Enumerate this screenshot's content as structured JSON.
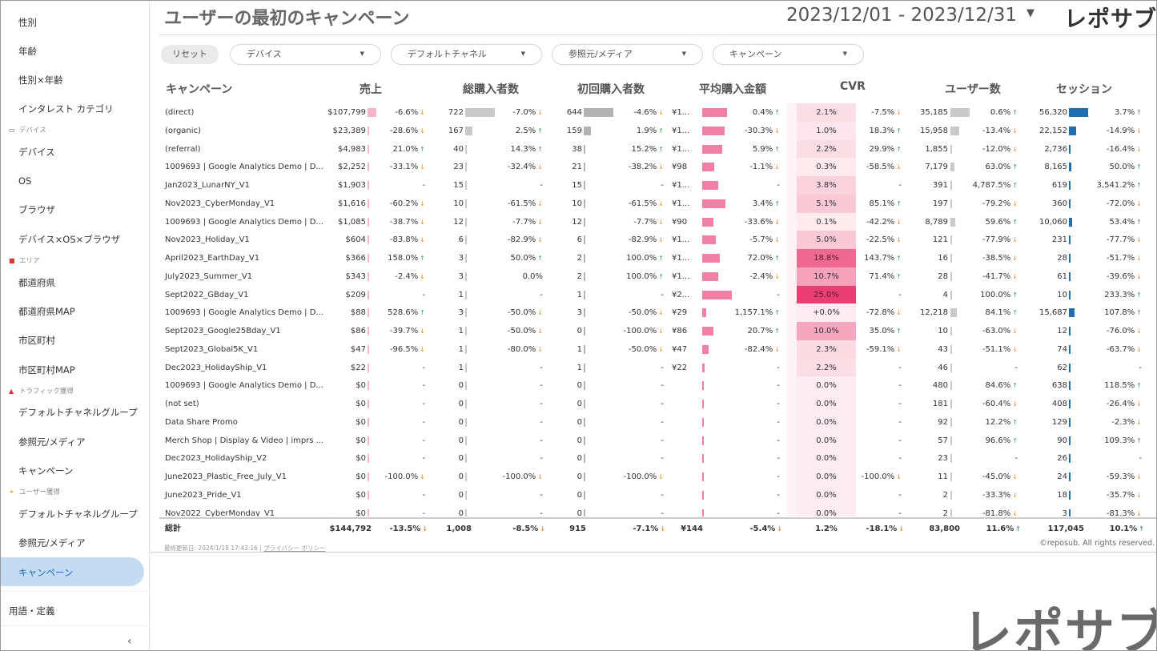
{
  "sidebar": {
    "items_top": [
      "性別",
      "年齢",
      "性別×年齢",
      "インタレスト カテゴリ"
    ],
    "section_device": "デバイス",
    "items_device": [
      "デバイス",
      "OS",
      "ブラウザ",
      "デバイス×OS×ブラウザ"
    ],
    "section_area": "エリア",
    "items_area": [
      "都道府県",
      "都道府県MAP",
      "市区町村",
      "市区町村MAP"
    ],
    "section_traffic": "トラフィック獲得",
    "items_traffic": [
      "デフォルトチャネルグループ",
      "参照元/メディア",
      "キャンペーン"
    ],
    "section_user": "ユーザー獲得",
    "items_user": [
      "デフォルトチャネルグループ",
      "参照元/メディア"
    ],
    "active": "キャンペーン",
    "glossary": "用語・定義",
    "collapse": "‹"
  },
  "header": {
    "title": "ユーザーの最初のキャンペーン",
    "date_range": "2023/12/01 - 2023/12/31",
    "logo": "レポサブ"
  },
  "filters": {
    "reset": "リセット",
    "items": [
      "デバイス",
      "デフォルトチャネル",
      "参照元/メディア",
      "キャンペーン"
    ]
  },
  "colors": {
    "accent": "#1a6fc0",
    "sales_bar": "#f4b6c8",
    "pink_bar": "#ef7fa4",
    "gray_bar": "#c9c9c9",
    "blue_bar": "#1f6fb2",
    "up": "#3aa55d",
    "down": "#e89327",
    "cvr_base": "#e83e73"
  },
  "table": {
    "headers": [
      "キャンペーン",
      "売上",
      "総購入者数",
      "初回購入者数",
      "平均購入金額",
      "CVR",
      "ユーザー数",
      "セッション"
    ],
    "rows": [
      {
        "name": "(direct)",
        "sales": "$107,799",
        "sales_ch": "-6.6%",
        "sales_d": "dn",
        "buy": "722",
        "buy_ch": "-7.0%",
        "buy_d": "dn",
        "first": "644",
        "first_ch": "-4.6%",
        "first_d": "dn",
        "avg": "¥1...",
        "avg_ch": "0.4%",
        "avg_d": "up",
        "cvr": "2.1%",
        "cvr_ch": "-7.5%",
        "cvr_d": "dn",
        "users": "35,185",
        "users_ch": "0.6%",
        "users_d": "up",
        "sess": "56,320",
        "sess_ch": "3.7%",
        "sess_d": "up"
      },
      {
        "name": "(organic)",
        "sales": "$23,389",
        "sales_ch": "-28.6%",
        "sales_d": "dn",
        "buy": "167",
        "buy_ch": "2.5%",
        "buy_d": "up",
        "first": "159",
        "first_ch": "1.9%",
        "first_d": "up",
        "avg": "¥1...",
        "avg_ch": "-30.3%",
        "avg_d": "dn",
        "cvr": "1.0%",
        "cvr_ch": "18.3%",
        "cvr_d": "up",
        "users": "15,958",
        "users_ch": "-13.4%",
        "users_d": "dn",
        "sess": "22,152",
        "sess_ch": "-14.9%",
        "sess_d": "dn"
      },
      {
        "name": "(referral)",
        "sales": "$4,983",
        "sales_ch": "21.0%",
        "sales_d": "up",
        "buy": "40",
        "buy_ch": "14.3%",
        "buy_d": "up",
        "first": "38",
        "first_ch": "15.2%",
        "first_d": "up",
        "avg": "¥1...",
        "avg_ch": "5.9%",
        "avg_d": "up",
        "cvr": "2.2%",
        "cvr_ch": "29.9%",
        "cvr_d": "up",
        "users": "1,855",
        "users_ch": "-12.0%",
        "users_d": "dn",
        "sess": "2,736",
        "sess_ch": "-16.4%",
        "sess_d": "dn"
      },
      {
        "name": "1009693 | Google Analytics Demo | D...",
        "sales": "$2,252",
        "sales_ch": "-33.1%",
        "sales_d": "dn",
        "buy": "23",
        "buy_ch": "-32.4%",
        "buy_d": "dn",
        "first": "21",
        "first_ch": "-38.2%",
        "first_d": "dn",
        "avg": "¥98",
        "avg_ch": "-1.1%",
        "avg_d": "dn",
        "cvr": "0.3%",
        "cvr_ch": "-58.5%",
        "cvr_d": "dn",
        "users": "7,179",
        "users_ch": "63.0%",
        "users_d": "up",
        "sess": "8,165",
        "sess_ch": "50.0%",
        "sess_d": "up"
      },
      {
        "name": "Jan2023_LunarNY_V1",
        "sales": "$1,903",
        "sales_ch": "-",
        "sales_d": "",
        "buy": "15",
        "buy_ch": "-",
        "buy_d": "",
        "first": "15",
        "first_ch": "-",
        "first_d": "",
        "avg": "¥1...",
        "avg_ch": "-",
        "avg_d": "",
        "cvr": "3.8%",
        "cvr_ch": "-",
        "cvr_d": "",
        "users": "391",
        "users_ch": "4,787.5%",
        "users_d": "up",
        "sess": "619",
        "sess_ch": "3,541.2%",
        "sess_d": "up"
      },
      {
        "name": "Nov2023_CyberMonday_V1",
        "sales": "$1,616",
        "sales_ch": "-60.2%",
        "sales_d": "dn",
        "buy": "10",
        "buy_ch": "-61.5%",
        "buy_d": "dn",
        "first": "10",
        "first_ch": "-61.5%",
        "first_d": "dn",
        "avg": "¥1...",
        "avg_ch": "3.4%",
        "avg_d": "up",
        "cvr": "5.1%",
        "cvr_ch": "85.1%",
        "cvr_d": "up",
        "users": "197",
        "users_ch": "-79.2%",
        "users_d": "dn",
        "sess": "360",
        "sess_ch": "-72.0%",
        "sess_d": "dn"
      },
      {
        "name": "1009693 | Google Analytics Demo | D...",
        "sales": "$1,085",
        "sales_ch": "-38.7%",
        "sales_d": "dn",
        "buy": "12",
        "buy_ch": "-7.7%",
        "buy_d": "dn",
        "first": "12",
        "first_ch": "-7.7%",
        "first_d": "dn",
        "avg": "¥90",
        "avg_ch": "-33.6%",
        "avg_d": "dn",
        "cvr": "0.1%",
        "cvr_ch": "-42.2%",
        "cvr_d": "dn",
        "users": "8,789",
        "users_ch": "59.6%",
        "users_d": "up",
        "sess": "10,060",
        "sess_ch": "53.4%",
        "sess_d": "up"
      },
      {
        "name": "Nov2023_Holiday_V1",
        "sales": "$604",
        "sales_ch": "-83.8%",
        "sales_d": "dn",
        "buy": "6",
        "buy_ch": "-82.9%",
        "buy_d": "dn",
        "first": "6",
        "first_ch": "-82.9%",
        "first_d": "dn",
        "avg": "¥1...",
        "avg_ch": "-5.7%",
        "avg_d": "dn",
        "cvr": "5.0%",
        "cvr_ch": "-22.5%",
        "cvr_d": "dn",
        "users": "121",
        "users_ch": "-77.9%",
        "users_d": "dn",
        "sess": "231",
        "sess_ch": "-77.7%",
        "sess_d": "dn"
      },
      {
        "name": "April2023_EarthDay_V1",
        "sales": "$366",
        "sales_ch": "158.0%",
        "sales_d": "up",
        "buy": "3",
        "buy_ch": "50.0%",
        "buy_d": "up",
        "first": "2",
        "first_ch": "100.0%",
        "first_d": "up",
        "avg": "¥1...",
        "avg_ch": "72.0%",
        "avg_d": "up",
        "cvr": "18.8%",
        "cvr_ch": "143.7%",
        "cvr_d": "up",
        "users": "16",
        "users_ch": "-38.5%",
        "users_d": "dn",
        "sess": "28",
        "sess_ch": "-51.7%",
        "sess_d": "dn"
      },
      {
        "name": "July2023_Summer_V1",
        "sales": "$343",
        "sales_ch": "-2.4%",
        "sales_d": "dn",
        "buy": "3",
        "buy_ch": "0.0%",
        "buy_d": "",
        "first": "2",
        "first_ch": "100.0%",
        "first_d": "up",
        "avg": "¥1...",
        "avg_ch": "-2.4%",
        "avg_d": "dn",
        "cvr": "10.7%",
        "cvr_ch": "71.4%",
        "cvr_d": "up",
        "users": "28",
        "users_ch": "-41.7%",
        "users_d": "dn",
        "sess": "61",
        "sess_ch": "-39.6%",
        "sess_d": "dn"
      },
      {
        "name": "Sept2022_GBday_V1",
        "sales": "$209",
        "sales_ch": "-",
        "sales_d": "",
        "buy": "1",
        "buy_ch": "-",
        "buy_d": "",
        "first": "1",
        "first_ch": "-",
        "first_d": "",
        "avg": "¥2...",
        "avg_ch": "-",
        "avg_d": "",
        "cvr": "25.0%",
        "cvr_ch": "-",
        "cvr_d": "",
        "users": "4",
        "users_ch": "100.0%",
        "users_d": "up",
        "sess": "10",
        "sess_ch": "233.3%",
        "sess_d": "up"
      },
      {
        "name": "1009693 | Google Analytics Demo | D...",
        "sales": "$88",
        "sales_ch": "528.6%",
        "sales_d": "up",
        "buy": "3",
        "buy_ch": "-50.0%",
        "buy_d": "dn",
        "first": "3",
        "first_ch": "-50.0%",
        "first_d": "dn",
        "avg": "¥29",
        "avg_ch": "1,157.1%",
        "avg_d": "up",
        "cvr": "+0.0%",
        "cvr_ch": "-72.8%",
        "cvr_d": "dn",
        "users": "12,218",
        "users_ch": "84.1%",
        "users_d": "up",
        "sess": "15,687",
        "sess_ch": "107.8%",
        "sess_d": "up"
      },
      {
        "name": "Sept2023_Google25Bday_V1",
        "sales": "$86",
        "sales_ch": "-39.7%",
        "sales_d": "dn",
        "buy": "1",
        "buy_ch": "-50.0%",
        "buy_d": "dn",
        "first": "0",
        "first_ch": "-100.0%",
        "first_d": "dn",
        "avg": "¥86",
        "avg_ch": "20.7%",
        "avg_d": "up",
        "cvr": "10.0%",
        "cvr_ch": "35.0%",
        "cvr_d": "up",
        "users": "10",
        "users_ch": "-63.0%",
        "users_d": "dn",
        "sess": "12",
        "sess_ch": "-76.0%",
        "sess_d": "dn"
      },
      {
        "name": "Sept2023_Global5K_V1",
        "sales": "$47",
        "sales_ch": "-96.5%",
        "sales_d": "dn",
        "buy": "1",
        "buy_ch": "-80.0%",
        "buy_d": "dn",
        "first": "1",
        "first_ch": "-50.0%",
        "first_d": "dn",
        "avg": "¥47",
        "avg_ch": "-82.4%",
        "avg_d": "dn",
        "cvr": "2.3%",
        "cvr_ch": "-59.1%",
        "cvr_d": "dn",
        "users": "43",
        "users_ch": "-51.1%",
        "users_d": "dn",
        "sess": "74",
        "sess_ch": "-63.7%",
        "sess_d": "dn"
      },
      {
        "name": "Dec2023_HolidayShip_V1",
        "sales": "$22",
        "sales_ch": "-",
        "sales_d": "",
        "buy": "1",
        "buy_ch": "-",
        "buy_d": "",
        "first": "1",
        "first_ch": "-",
        "first_d": "",
        "avg": "¥22",
        "avg_ch": "-",
        "avg_d": "",
        "cvr": "2.2%",
        "cvr_ch": "-",
        "cvr_d": "",
        "users": "46",
        "users_ch": "-",
        "users_d": "",
        "sess": "62",
        "sess_ch": "-",
        "sess_d": ""
      },
      {
        "name": "1009693 | Google Analytics Demo | D...",
        "sales": "$0",
        "sales_ch": "-",
        "sales_d": "",
        "buy": "0",
        "buy_ch": "-",
        "buy_d": "",
        "first": "0",
        "first_ch": "-",
        "first_d": "",
        "avg": "",
        "avg_ch": "-",
        "avg_d": "",
        "cvr": "0.0%",
        "cvr_ch": "-",
        "cvr_d": "",
        "users": "480",
        "users_ch": "84.6%",
        "users_d": "up",
        "sess": "638",
        "sess_ch": "118.5%",
        "sess_d": "up"
      },
      {
        "name": "(not set)",
        "sales": "$0",
        "sales_ch": "-",
        "sales_d": "",
        "buy": "0",
        "buy_ch": "-",
        "buy_d": "",
        "first": "0",
        "first_ch": "-",
        "first_d": "",
        "avg": "",
        "avg_ch": "-",
        "avg_d": "",
        "cvr": "0.0%",
        "cvr_ch": "-",
        "cvr_d": "",
        "users": "181",
        "users_ch": "-60.4%",
        "users_d": "dn",
        "sess": "408",
        "sess_ch": "-26.4%",
        "sess_d": "dn"
      },
      {
        "name": "Data Share Promo",
        "sales": "$0",
        "sales_ch": "-",
        "sales_d": "",
        "buy": "0",
        "buy_ch": "-",
        "buy_d": "",
        "first": "0",
        "first_ch": "-",
        "first_d": "",
        "avg": "",
        "avg_ch": "-",
        "avg_d": "",
        "cvr": "0.0%",
        "cvr_ch": "-",
        "cvr_d": "",
        "users": "92",
        "users_ch": "12.2%",
        "users_d": "up",
        "sess": "129",
        "sess_ch": "-2.3%",
        "sess_d": "dn"
      },
      {
        "name": "Merch Shop | Display & Video | imprs ...",
        "sales": "$0",
        "sales_ch": "-",
        "sales_d": "",
        "buy": "0",
        "buy_ch": "-",
        "buy_d": "",
        "first": "0",
        "first_ch": "-",
        "first_d": "",
        "avg": "",
        "avg_ch": "-",
        "avg_d": "",
        "cvr": "0.0%",
        "cvr_ch": "-",
        "cvr_d": "",
        "users": "57",
        "users_ch": "96.6%",
        "users_d": "up",
        "sess": "90",
        "sess_ch": "109.3%",
        "sess_d": "up"
      },
      {
        "name": "Dec2023_HolidayShip_V2",
        "sales": "$0",
        "sales_ch": "-",
        "sales_d": "",
        "buy": "0",
        "buy_ch": "-",
        "buy_d": "",
        "first": "0",
        "first_ch": "-",
        "first_d": "",
        "avg": "",
        "avg_ch": "-",
        "avg_d": "",
        "cvr": "0.0%",
        "cvr_ch": "-",
        "cvr_d": "",
        "users": "23",
        "users_ch": "-",
        "users_d": "",
        "sess": "26",
        "sess_ch": "-",
        "sess_d": ""
      },
      {
        "name": "June2023_Plastic_Free_July_V1",
        "sales": "$0",
        "sales_ch": "-100.0%",
        "sales_d": "dn",
        "buy": "0",
        "buy_ch": "-100.0%",
        "buy_d": "dn",
        "first": "0",
        "first_ch": "-100.0%",
        "first_d": "dn",
        "avg": "",
        "avg_ch": "-",
        "avg_d": "",
        "cvr": "0.0%",
        "cvr_ch": "-100.0%",
        "cvr_d": "dn",
        "users": "11",
        "users_ch": "-45.0%",
        "users_d": "dn",
        "sess": "24",
        "sess_ch": "-59.3%",
        "sess_d": "dn"
      },
      {
        "name": "June2023_Pride_V1",
        "sales": "$0",
        "sales_ch": "-",
        "sales_d": "",
        "buy": "0",
        "buy_ch": "-",
        "buy_d": "",
        "first": "0",
        "first_ch": "-",
        "first_d": "",
        "avg": "",
        "avg_ch": "-",
        "avg_d": "",
        "cvr": "0.0%",
        "cvr_ch": "-",
        "cvr_d": "",
        "users": "2",
        "users_ch": "-33.3%",
        "users_d": "dn",
        "sess": "18",
        "sess_ch": "-35.7%",
        "sess_d": "dn"
      },
      {
        "name": "Nov2022_CyberMonday_V1",
        "sales": "$0",
        "sales_ch": "-",
        "sales_d": "",
        "buy": "0",
        "buy_ch": "-",
        "buy_d": "",
        "first": "0",
        "first_ch": "-",
        "first_d": "",
        "avg": "",
        "avg_ch": "-",
        "avg_d": "",
        "cvr": "0.0%",
        "cvr_ch": "-",
        "cvr_d": "",
        "users": "2",
        "users_ch": "-81.8%",
        "users_d": "dn",
        "sess": "3",
        "sess_ch": "-81.3%",
        "sess_d": "dn"
      }
    ],
    "totals": {
      "label": "総計",
      "sales": "$144,792",
      "sales_ch": "-13.5%",
      "sales_d": "dn",
      "buy": "1,008",
      "buy_ch": "-8.5%",
      "buy_d": "dn",
      "first": "915",
      "first_ch": "-7.1%",
      "first_d": "dn",
      "avg": "¥144",
      "avg_ch": "-5.4%",
      "avg_d": "dn",
      "cvr": "1.2%",
      "cvr_ch": "-18.1%",
      "cvr_d": "dn",
      "users": "83,800",
      "users_ch": "11.6%",
      "users_d": "up",
      "sess": "117,045",
      "sess_ch": "10.1%",
      "sess_d": "up"
    }
  },
  "footer": {
    "updated": "最終更新日: 2024/1/18 17:43:16 |",
    "privacy": "プライバシー ポリシー",
    "copyright": "©reposub. All rights reserved."
  },
  "watermark": "レポサブ"
}
